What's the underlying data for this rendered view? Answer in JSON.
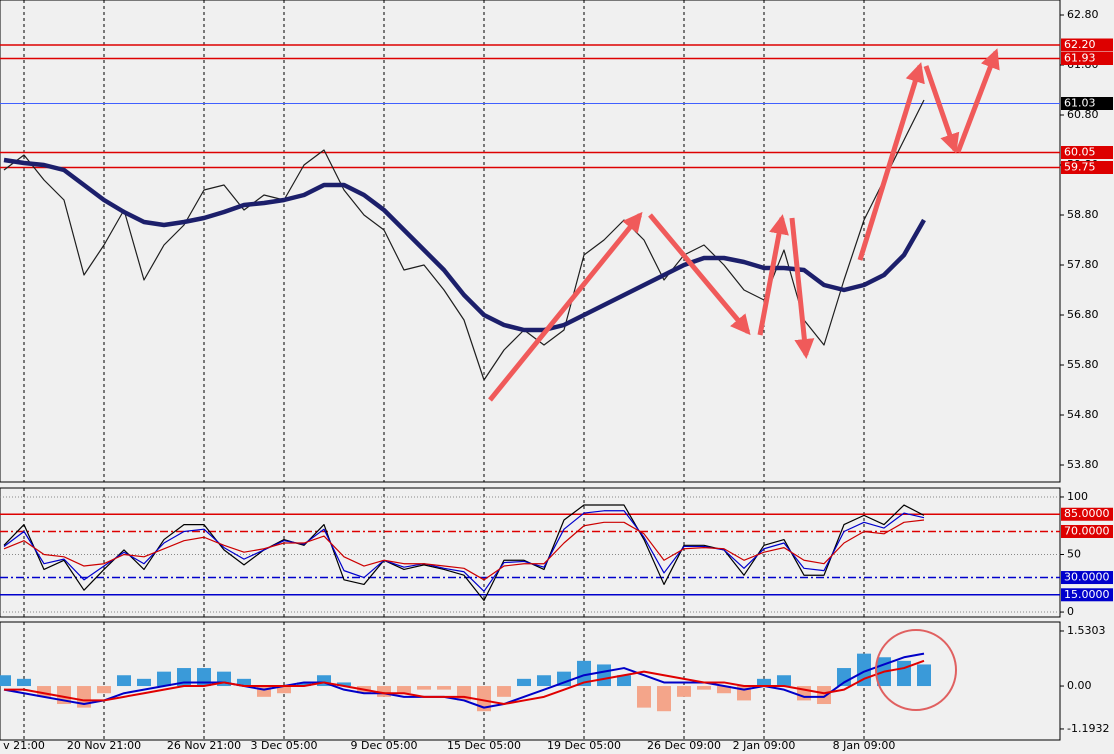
{
  "chart_data": [
    {
      "type": "line",
      "categories": [
        null,
        "v 21:00",
        null,
        null,
        null,
        "20 Nov 21:00",
        null,
        null,
        null,
        null,
        "26 Nov 21:00",
        null,
        null,
        null,
        "3 Dec 05:00",
        null,
        null,
        null,
        null,
        "9 Dec 05:00",
        null,
        null,
        null,
        null,
        "15 Dec 05:00",
        null,
        null,
        null,
        null,
        "19 Dec 05:00",
        null,
        null,
        null,
        null,
        "26 Dec 09:00",
        null,
        null,
        null,
        "2 Jan 09:00",
        null,
        null,
        null,
        null,
        "8 Jan 09:00",
        null,
        null,
        null
      ],
      "series": [
        {
          "color": "#1e1e1e",
          "values": [
            59.7,
            60.0,
            59.5,
            59.1,
            57.6,
            58.2,
            58.9,
            57.5,
            58.2,
            58.6,
            59.3,
            59.4,
            58.9,
            59.2,
            59.1,
            59.8,
            60.1,
            59.3,
            58.8,
            58.5,
            57.7,
            57.8,
            57.3,
            56.7,
            55.5,
            56.1,
            56.5,
            56.2,
            56.5,
            58.0,
            58.3,
            58.7,
            58.3,
            57.5,
            58.0,
            58.2,
            57.8,
            57.3,
            57.1,
            58.1,
            56.7,
            56.2,
            57.5,
            58.7,
            59.5,
            60.3,
            61.1
          ]
        },
        {
          "color": "#1c1f6b",
          "values": [
            59.9,
            59.84,
            59.8,
            59.7,
            59.4,
            59.1,
            58.86,
            58.66,
            58.6,
            58.66,
            58.74,
            58.86,
            59.0,
            59.04,
            59.1,
            59.2,
            59.4,
            59.4,
            59.2,
            58.9,
            58.5,
            58.1,
            57.7,
            57.2,
            56.8,
            56.6,
            56.5,
            56.5,
            56.6,
            56.8,
            57.0,
            57.2,
            57.4,
            57.6,
            57.8,
            57.94,
            57.94,
            57.86,
            57.74,
            57.74,
            57.7,
            57.4,
            57.3,
            57.4,
            57.6,
            58.0,
            58.7
          ]
        }
      ],
      "levels": [
        {
          "value": 62.2,
          "label": "62.20",
          "color": "#dd0000",
          "box_color": "#dd0000",
          "style": "solid"
        },
        {
          "value": 61.93,
          "label": "61.93",
          "color": "#dd0000",
          "box_color": "#dd0000",
          "style": "solid"
        },
        {
          "value": 61.03,
          "label": "61.03",
          "color": "#4060ff",
          "box_color": "#000000",
          "style": "solid"
        },
        {
          "value": 60.05,
          "label": "60.05",
          "color": "#dd0000",
          "box_color": "#dd0000",
          "style": "solid"
        },
        {
          "value": 59.75,
          "label": "59.75",
          "color": "#dd0000",
          "box_color": "#dd0000",
          "style": "solid"
        }
      ],
      "ylim": [
        53.46,
        63.1
      ],
      "yticks": [
        {
          "value": 53.8,
          "label": "53.80"
        },
        {
          "value": 54.8,
          "label": "54.80"
        },
        {
          "value": 55.8,
          "label": "55.80"
        },
        {
          "value": 56.8,
          "label": "56.80"
        },
        {
          "value": 57.8,
          "label": "57.80"
        },
        {
          "value": 58.8,
          "label": "58.80"
        },
        {
          "value": 59.8,
          "label": "59.80"
        },
        {
          "value": 60.8,
          "label": "60.80"
        },
        {
          "value": 61.8,
          "label": "61.80"
        },
        {
          "value": 62.8,
          "label": "62.80"
        }
      ],
      "grid": false
    },
    {
      "type": "line",
      "series": [
        {
          "color": "#000000",
          "values": [
            58,
            76,
            37,
            45,
            19,
            37,
            54,
            37,
            63,
            76,
            76,
            54,
            41,
            54,
            63,
            58,
            76,
            28,
            24,
            45,
            37,
            41,
            37,
            32,
            10,
            45,
            45,
            37,
            80,
            93,
            93,
            93,
            63,
            24,
            58,
            58,
            54,
            32,
            58,
            63,
            32,
            32,
            76,
            84,
            76,
            93,
            84
          ]
        },
        {
          "color": "#0000cc",
          "values": [
            57,
            70,
            42,
            46,
            28,
            40,
            52,
            42,
            60,
            70,
            72,
            56,
            46,
            54,
            62,
            59,
            72,
            36,
            30,
            45,
            39,
            42,
            38,
            35,
            18,
            43,
            44,
            39,
            72,
            86,
            88,
            88,
            65,
            34,
            57,
            57,
            54,
            38,
            55,
            60,
            38,
            36,
            70,
            78,
            73,
            86,
            82
          ]
        },
        {
          "color": "#cc0000",
          "values": [
            55,
            62,
            50,
            48,
            40,
            42,
            50,
            48,
            55,
            62,
            65,
            58,
            52,
            55,
            60,
            60,
            66,
            48,
            40,
            45,
            42,
            42,
            40,
            38,
            28,
            40,
            42,
            42,
            60,
            75,
            78,
            78,
            68,
            45,
            55,
            56,
            55,
            45,
            52,
            56,
            45,
            42,
            60,
            70,
            68,
            78,
            80
          ]
        }
      ],
      "levels": [
        {
          "value": 85,
          "label": "85.0000",
          "color": "#dd0000",
          "box_color": "#dd0000",
          "style": "solid"
        },
        {
          "value": 70,
          "label": "70.0000",
          "color": "#dd0000",
          "box_color": "#dd0000",
          "style": "dashdot"
        },
        {
          "value": 30,
          "label": "30.0000",
          "color": "#0000cc",
          "box_color": "#0000cc",
          "style": "dashdot"
        },
        {
          "value": 15,
          "label": "15.0000",
          "color": "#0000cc",
          "box_color": "#0000cc",
          "style": "solid"
        }
      ],
      "ylim": [
        -4.3,
        107.8
      ],
      "yticks": [
        0,
        50,
        100
      ],
      "grid": true
    },
    {
      "type": "bar_line",
      "bars": {
        "color": "#3a9ad9",
        "negative_color": "#f4a58a",
        "values": [
          0.3,
          0.2,
          -0.3,
          -0.5,
          -0.6,
          -0.2,
          0.3,
          0.2,
          0.4,
          0.5,
          0.5,
          0.4,
          0.2,
          -0.3,
          -0.2,
          0.1,
          0.3,
          0.1,
          -0.2,
          -0.3,
          -0.2,
          -0.1,
          -0.1,
          -0.4,
          -0.7,
          -0.3,
          0.2,
          0.3,
          0.4,
          0.7,
          0.6,
          0.3,
          -0.6,
          -0.7,
          -0.3,
          -0.1,
          -0.2,
          -0.4,
          0.2,
          0.3,
          -0.4,
          -0.5,
          0.5,
          0.9,
          0.8,
          0.7,
          0.6
        ]
      },
      "series": [
        {
          "color": "#0000c8",
          "values": [
            -0.1,
            -0.2,
            -0.3,
            -0.4,
            -0.5,
            -0.4,
            -0.2,
            -0.1,
            0.0,
            0.1,
            0.1,
            0.1,
            0.0,
            -0.1,
            0.0,
            0.1,
            0.1,
            -0.1,
            -0.2,
            -0.2,
            -0.3,
            -0.3,
            -0.3,
            -0.4,
            -0.6,
            -0.5,
            -0.3,
            -0.1,
            0.1,
            0.3,
            0.4,
            0.5,
            0.3,
            0.1,
            0.1,
            0.1,
            0.0,
            -0.1,
            0.0,
            -0.1,
            -0.3,
            -0.3,
            0.1,
            0.4,
            0.6,
            0.8,
            0.9
          ]
        },
        {
          "color": "#e00000",
          "values": [
            -0.1,
            -0.1,
            -0.2,
            -0.3,
            -0.4,
            -0.4,
            -0.3,
            -0.2,
            -0.1,
            0.0,
            0.0,
            0.1,
            0.0,
            0.0,
            0.0,
            0.0,
            0.1,
            0.0,
            -0.1,
            -0.2,
            -0.2,
            -0.3,
            -0.3,
            -0.3,
            -0.4,
            -0.5,
            -0.4,
            -0.3,
            -0.1,
            0.1,
            0.2,
            0.3,
            0.4,
            0.3,
            0.2,
            0.1,
            0.1,
            0.0,
            0.0,
            0.0,
            -0.1,
            -0.2,
            -0.1,
            0.2,
            0.4,
            0.5,
            0.7
          ]
        }
      ],
      "ylim": [
        -1.5,
        1.78
      ],
      "yticks": [
        -1.1932,
        {
          "value": 0,
          "label": "0.00"
        },
        1.5303
      ],
      "grid": false
    }
  ]
}
